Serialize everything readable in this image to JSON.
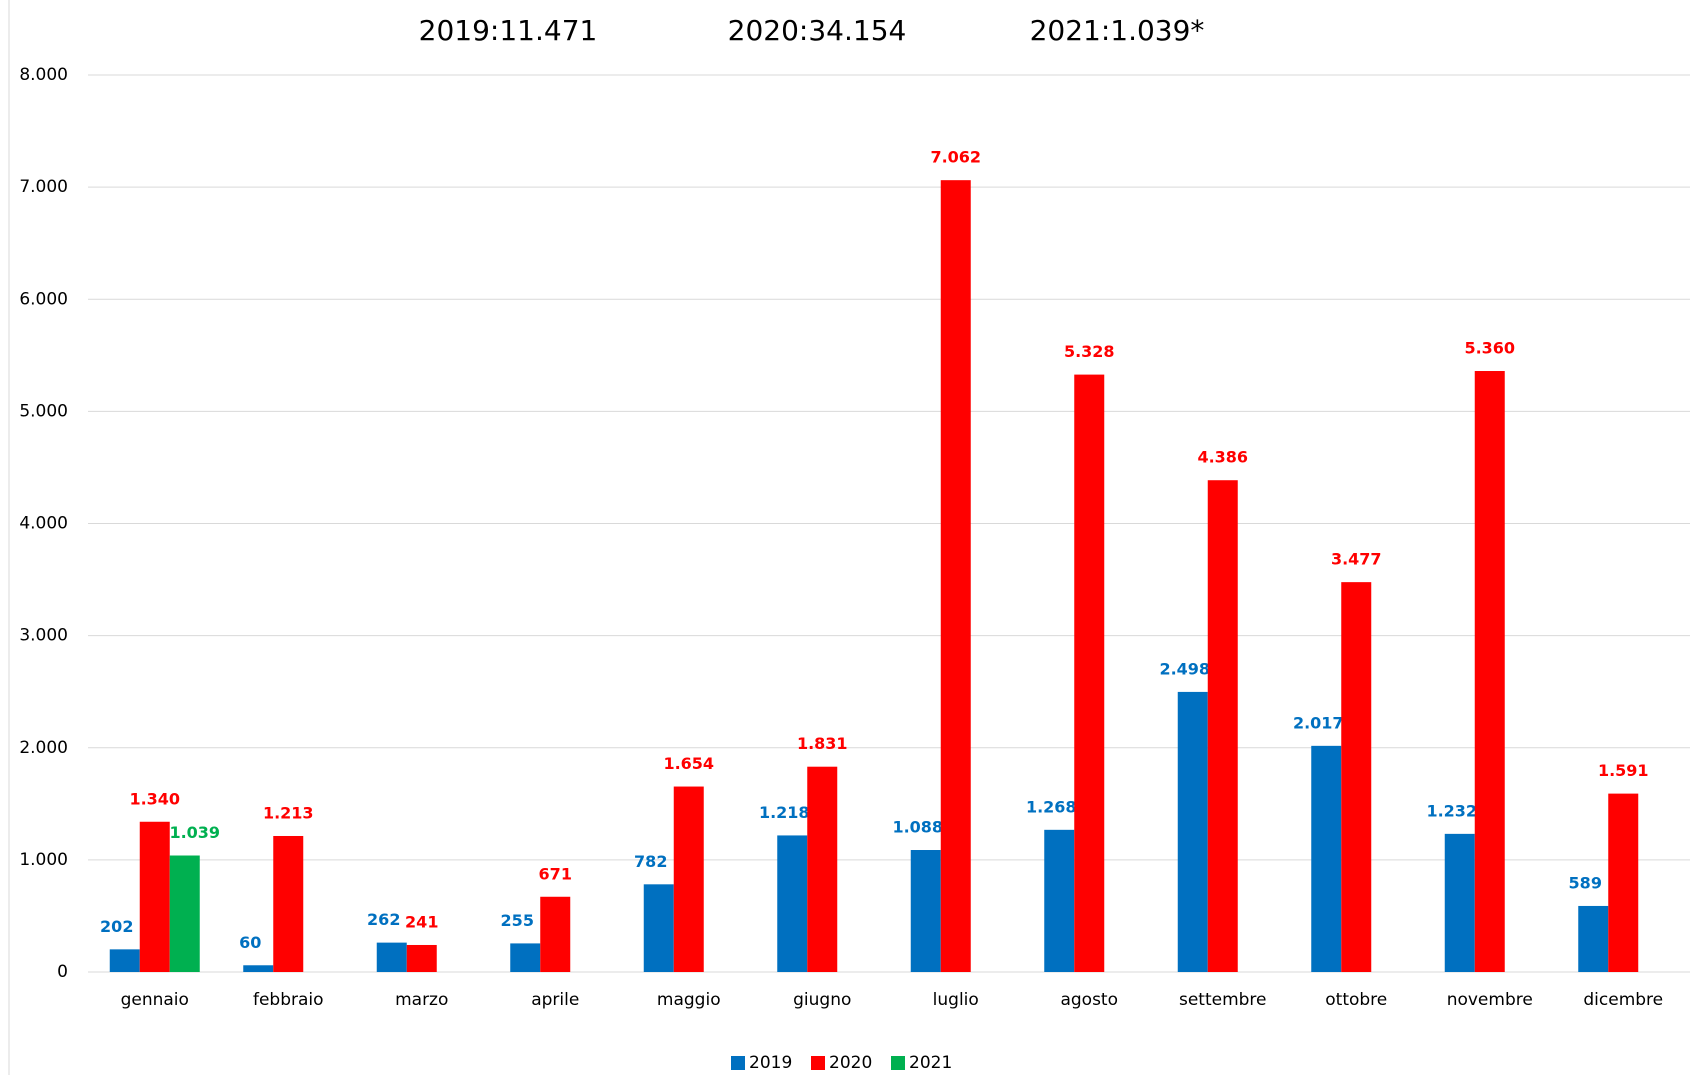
{
  "chart_data": {
    "type": "bar",
    "annotations": [
      "2019:11.471",
      "2020:34.154",
      "2021:1.039*"
    ],
    "categories": [
      "gennaio",
      "febbraio",
      "marzo",
      "aprile",
      "maggio",
      "giugno",
      "luglio",
      "agosto",
      "settembre",
      "ottobre",
      "novembre",
      "dicembre"
    ],
    "series": [
      {
        "name": "2019",
        "color": "#0070c0",
        "values": [
          202,
          60,
          262,
          255,
          782,
          1218,
          1088,
          1268,
          2498,
          2017,
          1232,
          589
        ],
        "value_labels": [
          "202",
          "60",
          "262",
          "255",
          "782",
          "1.218",
          "1.088",
          "1.268",
          "2.498",
          "2.017",
          "1.232",
          "589"
        ]
      },
      {
        "name": "2020",
        "color": "#ff0000",
        "values": [
          1340,
          1213,
          241,
          671,
          1654,
          1831,
          7062,
          5328,
          4386,
          3477,
          5360,
          1591
        ],
        "value_labels": [
          "1.340",
          "1.213",
          "241",
          "671",
          "1.654",
          "1.831",
          "7.062",
          "5.328",
          "4.386",
          "3.477",
          "5.360",
          "1.591"
        ]
      },
      {
        "name": "2021",
        "color": "#00b050",
        "values": [
          1039,
          null,
          null,
          null,
          null,
          null,
          null,
          null,
          null,
          null,
          null,
          null
        ],
        "value_labels": [
          "1.039",
          null,
          null,
          null,
          null,
          null,
          null,
          null,
          null,
          null,
          null,
          null
        ]
      }
    ],
    "ylim": [
      0,
      8000
    ],
    "yticks": [
      0,
      {
        "value": 1000,
        "label": "1.000"
      },
      {
        "value": 2000,
        "label": "2.000"
      },
      {
        "value": 3000,
        "label": "3.000"
      },
      {
        "value": 4000,
        "label": "4.000"
      },
      {
        "value": 5000,
        "label": "5.000"
      },
      {
        "value": 6000,
        "label": "6.000"
      },
      {
        "value": 7000,
        "label": "7.000"
      },
      {
        "value": 8000,
        "label": "8.000"
      }
    ],
    "grid": true,
    "legend": "bottom"
  }
}
